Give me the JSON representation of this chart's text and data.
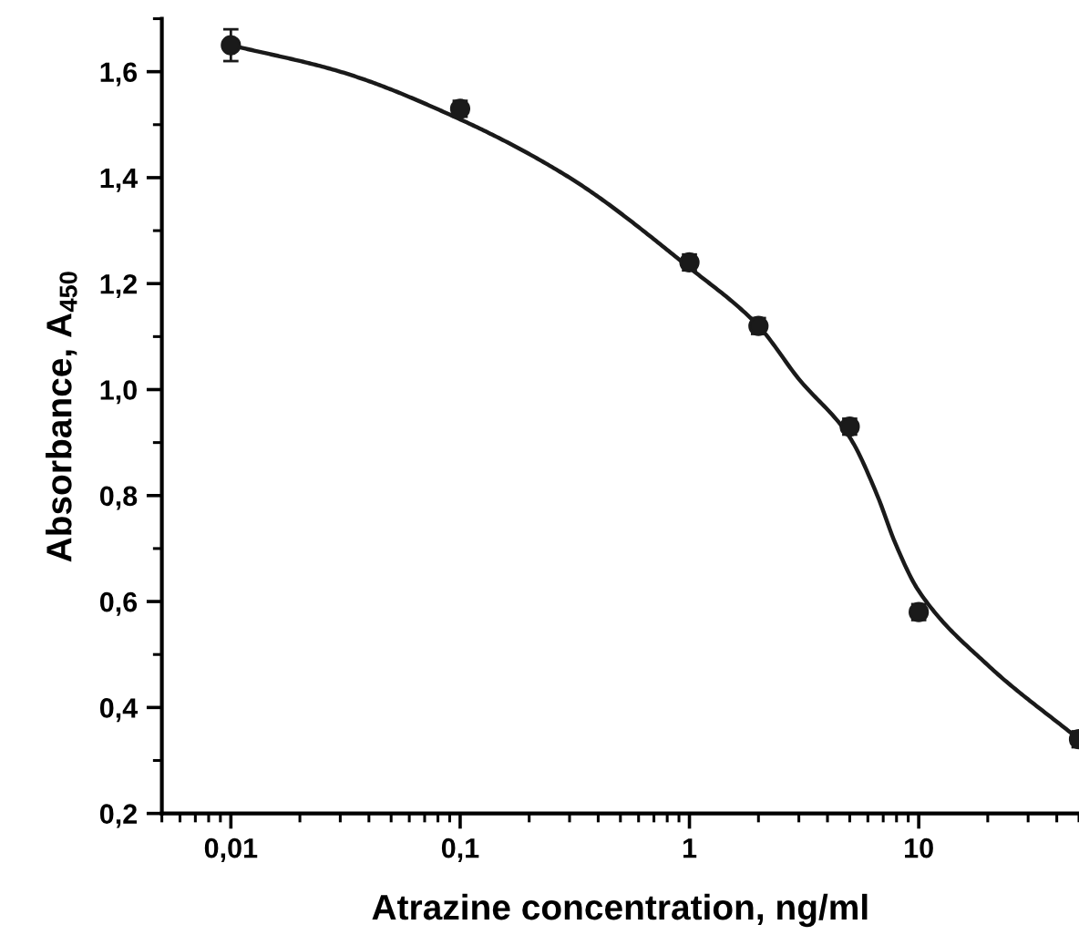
{
  "chart_data": {
    "type": "scatter",
    "xlabel": "Atrazine concentration, ng/ml",
    "ylabel": "Absorbance, A$_{450}$",
    "log": "x",
    "xlim": [
      0.005,
      50
    ],
    "ylim": [
      0.2,
      1.7
    ],
    "xticks": [
      {
        "value": 0.01,
        "label": "0,01"
      },
      {
        "value": 0.1,
        "label": "0,1"
      },
      1,
      10
    ],
    "yticks": [
      {
        "value": 0.2,
        "label": "0,2"
      },
      {
        "value": 0.4,
        "label": "0,4"
      },
      {
        "value": 0.6,
        "label": "0,6"
      },
      {
        "value": 0.8,
        "label": "0,8"
      },
      {
        "value": 1.0,
        "label": "1,0"
      },
      {
        "value": 1.2,
        "label": "1,2"
      },
      {
        "value": 1.4,
        "label": "1,4"
      },
      {
        "value": 1.6,
        "label": "1,6"
      }
    ],
    "series": [
      {
        "color": "#1a1a1a",
        "marker": "circle",
        "x": [
          0.01,
          0.1,
          1,
          2,
          5,
          10,
          50
        ],
        "values": [
          1.65,
          1.53,
          1.24,
          1.12,
          0.93,
          0.58,
          0.34
        ],
        "errors": [
          0.03,
          0.015,
          0.015,
          0.015,
          0.015,
          0.015,
          0.015
        ]
      },
      {
        "type": "line",
        "marker": "none",
        "color": "#1a1a1a",
        "x": [
          0.01,
          0.03,
          0.1,
          0.3,
          1,
          2,
          3,
          5,
          6.6,
          7.9,
          10,
          20,
          50
        ],
        "values": [
          1.65,
          1.6,
          1.51,
          1.4,
          1.23,
          1.12,
          1.02,
          0.91,
          0.8,
          0.71,
          0.62,
          0.48,
          0.34
        ]
      }
    ]
  }
}
